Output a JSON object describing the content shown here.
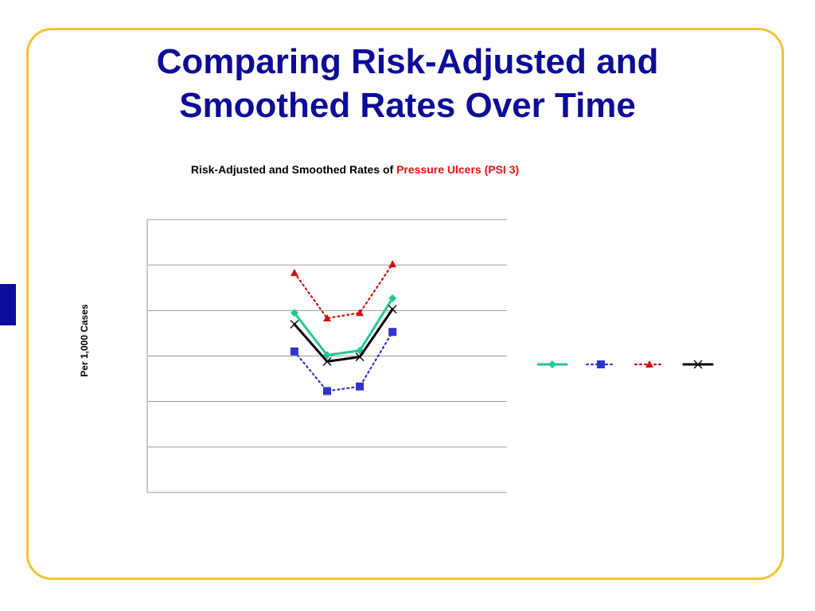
{
  "slide": {
    "title_line1": "Comparing Risk-Adjusted and",
    "title_line2": "Smoothed Rates Over Time"
  },
  "colors": {
    "title": "#0c0c99",
    "frame": "#f2c235",
    "highlight": "#e81010"
  },
  "chart_data": {
    "type": "line",
    "title_prefix": "Risk-Adjusted and Smoothed Rates of ",
    "title_highlight": "Pressure Ulcers (PSI 3)",
    "ylabel": "Per 1,000 Cases",
    "xlabel": "",
    "ylim": [
      0,
      6
    ],
    "grid": true,
    "gridlines": 6,
    "x": [
      1,
      2,
      3,
      4
    ],
    "xlim": [
      -3.5,
      7.5
    ],
    "legend_position": "right",
    "series": [
      {
        "color": "#20c896",
        "marker": "diamond",
        "dash": "solid",
        "values": [
          3.95,
          3.02,
          3.12,
          4.27
        ]
      },
      {
        "color": "#3333cc",
        "marker": "square",
        "dash": "dotted",
        "values": [
          3.1,
          2.23,
          2.33,
          3.53
        ]
      },
      {
        "color": "#cc1111",
        "marker": "triangle",
        "dash": "dotted",
        "values": [
          4.83,
          3.83,
          3.95,
          5.02
        ]
      },
      {
        "color": "#000000",
        "marker": "x",
        "dash": "solid",
        "values": [
          3.7,
          2.88,
          2.98,
          4.03
        ]
      }
    ]
  }
}
